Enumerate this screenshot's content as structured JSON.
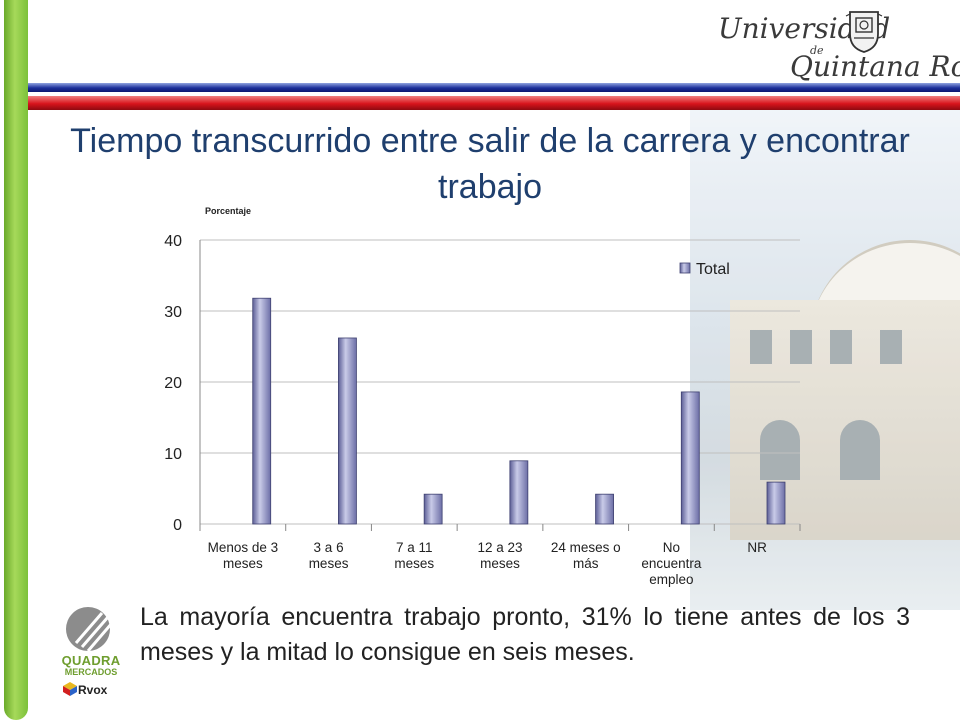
{
  "slide": {
    "title": "Tiempo transcurrido entre salir de la carrera y encontrar trabajo",
    "body_text": "La mayoría encuentra trabajo pronto, 31% lo tiene antes de los 3 meses y la mitad lo consigue en seis meses.",
    "colors": {
      "title": "#1f3f6e",
      "green_bar": "#7cc13a",
      "blue_stripe": "#1c2f9a",
      "red_stripe": "#d8141c"
    }
  },
  "logo": {
    "line1": "Universidad",
    "line2": "de",
    "line3": "Quintana Roo",
    "crest_icon": "university-crest-icon"
  },
  "quadra_logo": {
    "line1": "QUADRA",
    "line2": "MERCADOS",
    "line3": "Rvox",
    "icon": "quadra-mercados-logo-icon"
  },
  "chart_data": {
    "type": "bar",
    "ylabel": "Porcentaje",
    "categories": [
      [
        "Menos de 3",
        "meses"
      ],
      [
        "3 a 6",
        "meses"
      ],
      [
        "7 a 11",
        "meses"
      ],
      [
        "12 a 23",
        "meses"
      ],
      [
        "24 meses o",
        "más"
      ],
      [
        "No",
        "encuentra",
        "empleo"
      ],
      [
        "NR"
      ]
    ],
    "series": [
      {
        "name": "Total",
        "values": [
          31.8,
          26.2,
          4.2,
          8.9,
          4.2,
          18.6,
          5.9
        ],
        "color": "#8e90c2"
      }
    ],
    "ylim": [
      0,
      40
    ],
    "yticks": [
      0,
      10,
      20,
      30,
      40
    ],
    "grid": true,
    "legend": "top-right"
  }
}
